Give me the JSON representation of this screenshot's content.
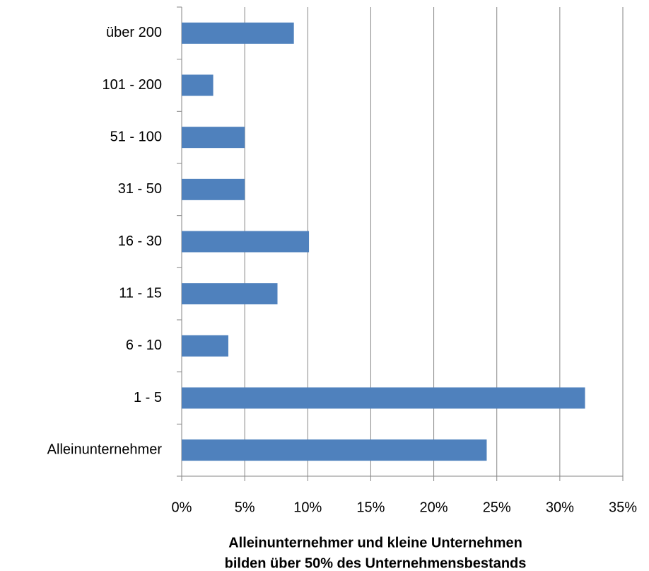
{
  "chart_data": {
    "type": "bar",
    "orientation": "horizontal",
    "title": [
      "Alleinunternehmer und kleine Unternehmen",
      "bilden über 50% des Unternehmensbestands"
    ],
    "categories": [
      "über 200",
      "101 - 200",
      "51 - 100",
      "31 - 50",
      "16 - 30",
      "11 - 15",
      "6 - 10",
      "1 - 5",
      "Alleinunternehmer"
    ],
    "values": [
      8.9,
      2.5,
      5.0,
      5.0,
      10.1,
      7.6,
      3.7,
      32.0,
      24.2
    ],
    "color": "#4f81bd",
    "xlim": [
      0,
      35
    ],
    "xticks": [
      {
        "value": 0,
        "label": "0%"
      },
      {
        "value": 5,
        "label": "5%"
      },
      {
        "value": 10,
        "label": "10%"
      },
      {
        "value": 15,
        "label": "15%"
      },
      {
        "value": 20,
        "label": "20%"
      },
      {
        "value": 25,
        "label": "25%"
      },
      {
        "value": 30,
        "label": "30%"
      },
      {
        "value": 35,
        "label": "35%"
      }
    ],
    "grid": true
  }
}
